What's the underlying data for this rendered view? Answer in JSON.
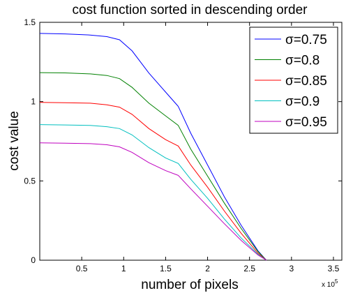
{
  "chart_data": {
    "type": "line",
    "title": "cost function sorted in descending order",
    "xlabel": "number of pixels",
    "ylabel": "cost value",
    "x_exponent_label": "x 10",
    "x_exponent_power": "5",
    "xlim": [
      0,
      3.6
    ],
    "ylim": [
      0,
      1.5
    ],
    "x_ticks": [
      0.5,
      1,
      1.5,
      2,
      2.5,
      3,
      3.5
    ],
    "x_tick_labels": [
      "0.5",
      "1",
      "1.5",
      "2",
      "2.5",
      "3",
      "3.5"
    ],
    "y_ticks": [
      0,
      0.5,
      1,
      1.5
    ],
    "y_tick_labels": [
      "0",
      "0.5",
      "1",
      "1.5"
    ],
    "legend_position": "top-right",
    "x": [
      0,
      0.3,
      0.6,
      0.8,
      0.95,
      1.1,
      1.3,
      1.5,
      1.65,
      1.8,
      2.0,
      2.2,
      2.4,
      2.6,
      2.7
    ],
    "series": [
      {
        "name": "σ=0.75",
        "color": "#0000ff",
        "values": [
          1.43,
          1.427,
          1.42,
          1.41,
          1.39,
          1.32,
          1.18,
          1.06,
          0.97,
          0.8,
          0.6,
          0.4,
          0.22,
          0.06,
          0.0
        ]
      },
      {
        "name": "σ=0.8",
        "color": "#008000",
        "values": [
          1.183,
          1.181,
          1.175,
          1.165,
          1.145,
          1.09,
          0.99,
          0.91,
          0.85,
          0.7,
          0.53,
          0.36,
          0.2,
          0.055,
          0.0
        ]
      },
      {
        "name": "σ=0.85",
        "color": "#ff0000",
        "values": [
          0.995,
          0.993,
          0.99,
          0.98,
          0.965,
          0.92,
          0.83,
          0.76,
          0.72,
          0.6,
          0.46,
          0.31,
          0.17,
          0.045,
          0.0
        ]
      },
      {
        "name": "σ=0.9",
        "color": "#00bfbf",
        "values": [
          0.855,
          0.853,
          0.85,
          0.842,
          0.83,
          0.79,
          0.71,
          0.645,
          0.61,
          0.51,
          0.39,
          0.26,
          0.14,
          0.038,
          0.0
        ]
      },
      {
        "name": "σ=0.95",
        "color": "#bf00bf",
        "values": [
          0.74,
          0.738,
          0.735,
          0.728,
          0.715,
          0.68,
          0.615,
          0.565,
          0.535,
          0.45,
          0.34,
          0.23,
          0.125,
          0.033,
          0.0
        ]
      }
    ]
  }
}
